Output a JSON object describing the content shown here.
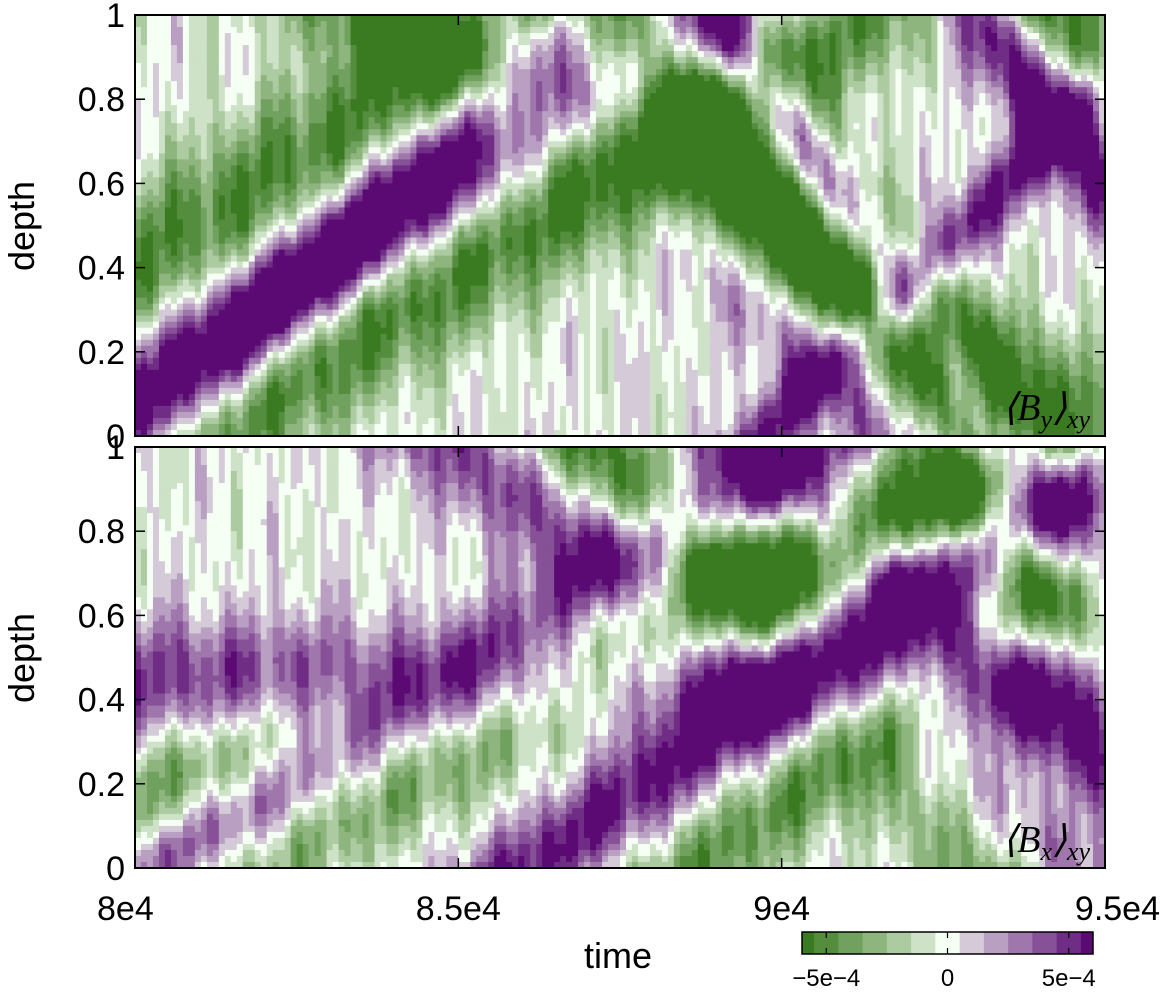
{
  "chart_data": [
    {
      "type": "heatmap",
      "annotation": "⟨B_y⟩_xy",
      "annotation_main": "⟨B",
      "annotation_sub": "y",
      "annotation_close": "⟩",
      "annotation_subsub": "xy",
      "xlabel": "",
      "ylabel": "depth",
      "xlim": [
        80000,
        95000
      ],
      "ylim": [
        0,
        1
      ],
      "yticks": [
        "0",
        "0.2",
        "0.4",
        "0.6",
        "0.8",
        "1"
      ],
      "ytick_values": [
        0,
        0.2,
        0.4,
        0.6,
        0.8,
        1
      ],
      "bands": [
        {
          "sign": -1,
          "t0": 80000,
          "d0": 0.4,
          "slope": 0.0001,
          "width": 0.14,
          "amp": 0.9
        },
        {
          "sign": 1,
          "t0": 80300,
          "d0": 0.15,
          "slope": 9.5e-05,
          "width": 0.1,
          "amp": 1.0
        },
        {
          "sign": -1,
          "t0": 81500,
          "d0": 0.05,
          "slope": 0.0001,
          "width": 0.13,
          "amp": 1.0
        },
        {
          "sign": 1,
          "t0": 83500,
          "d0": 0.5,
          "slope": 0.00015,
          "width": 0.1,
          "amp": 1.0
        },
        {
          "sign": -1,
          "t0": 84000,
          "d0": 1.0,
          "slope": -9e-05,
          "width": 0.12,
          "amp": 0.9
        },
        {
          "sign": 1,
          "t0": 86000,
          "d0": 0.9,
          "slope": -0.00016,
          "width": 0.1,
          "amp": 0.6
        },
        {
          "sign": -1,
          "t0": 87500,
          "d0": 1.0,
          "slope": -0.00018,
          "width": 0.12,
          "amp": 1.0
        },
        {
          "sign": 1,
          "t0": 89300,
          "d0": 0.95,
          "slope": -0.00023,
          "width": 0.11,
          "amp": 1.1
        },
        {
          "sign": -1,
          "t0": 90000,
          "d0": 0.9,
          "slope": -0.00023,
          "width": 0.08,
          "amp": 0.7
        },
        {
          "sign": 1,
          "t0": 90350,
          "d0": 0.1,
          "slope": 0.00016,
          "width": 0.07,
          "amp": 1.0
        },
        {
          "sign": 1,
          "t0": 93000,
          "d0": 1.0,
          "slope": -0.0002,
          "width": 0.1,
          "amp": 1.1
        },
        {
          "sign": -1,
          "t0": 94500,
          "d0": 0.95,
          "slope": -0.0002,
          "width": 0.1,
          "amp": 1.0
        }
      ]
    },
    {
      "type": "heatmap",
      "annotation": "⟨B_x⟩_xy",
      "annotation_main": "⟨B",
      "annotation_sub": "x",
      "annotation_close": "⟩",
      "annotation_subsub": "xy",
      "xlabel": "time",
      "ylabel": "depth",
      "xlim": [
        80000,
        95000
      ],
      "ylim": [
        0,
        1
      ],
      "xticks": [
        "8e4",
        "8.5e4",
        "9e4",
        "9.5e4"
      ],
      "xtick_values": [
        80000,
        85000,
        90000,
        95000
      ],
      "yticks": [
        "0",
        "0.2",
        "0.4",
        "0.6",
        "0.8",
        "1"
      ],
      "ytick_values": [
        0,
        0.2,
        0.4,
        0.6,
        0.8,
        1
      ],
      "bands": [
        {
          "sign": 1,
          "t0": 80000,
          "d0": 0.45,
          "slope": 0.0,
          "width": 0.1,
          "amp": 0.8
        },
        {
          "sign": -1,
          "t0": 80000,
          "d0": 0.15,
          "slope": 6e-05,
          "width": 0.1,
          "amp": 0.8
        },
        {
          "sign": 1,
          "t0": 81500,
          "d0": 0.12,
          "slope": 0.0001,
          "width": 0.09,
          "amp": 1.0
        },
        {
          "sign": -1,
          "t0": 82500,
          "d0": 0.05,
          "slope": 8e-05,
          "width": 0.09,
          "amp": 0.6
        },
        {
          "sign": 1,
          "t0": 85500,
          "d0": 0.95,
          "slope": -0.00011,
          "width": 0.11,
          "amp": 0.8
        },
        {
          "sign": -1,
          "t0": 87000,
          "d0": 1.0,
          "slope": -0.00016,
          "width": 0.13,
          "amp": 1.1
        },
        {
          "sign": 1,
          "t0": 89500,
          "d0": 1.0,
          "slope": -0.00014,
          "width": 0.09,
          "amp": 0.8
        },
        {
          "sign": 1,
          "t0": 88800,
          "d0": 0.3,
          "slope": 0.00011,
          "width": 0.09,
          "amp": 1.0
        },
        {
          "sign": -1,
          "t0": 90000,
          "d0": 0.15,
          "slope": 0.00012,
          "width": 0.1,
          "amp": 0.8
        },
        {
          "sign": 1,
          "t0": 93500,
          "d0": 1.0,
          "slope": -0.00017,
          "width": 0.1,
          "amp": 1.1
        },
        {
          "sign": -1,
          "t0": 92500,
          "d0": 0.95,
          "slope": -0.00019,
          "width": 0.08,
          "amp": 0.6
        }
      ]
    }
  ],
  "colorbar": {
    "ticks": [
      "−5e−4",
      "0",
      "5e−4"
    ],
    "tick_values": [
      -0.0005,
      0,
      0.0005
    ],
    "range": [
      -0.0006,
      0.0006
    ]
  },
  "colors": {
    "green": "#3a7a20",
    "white": "#f6fff4",
    "purple": "#5a0a72"
  }
}
